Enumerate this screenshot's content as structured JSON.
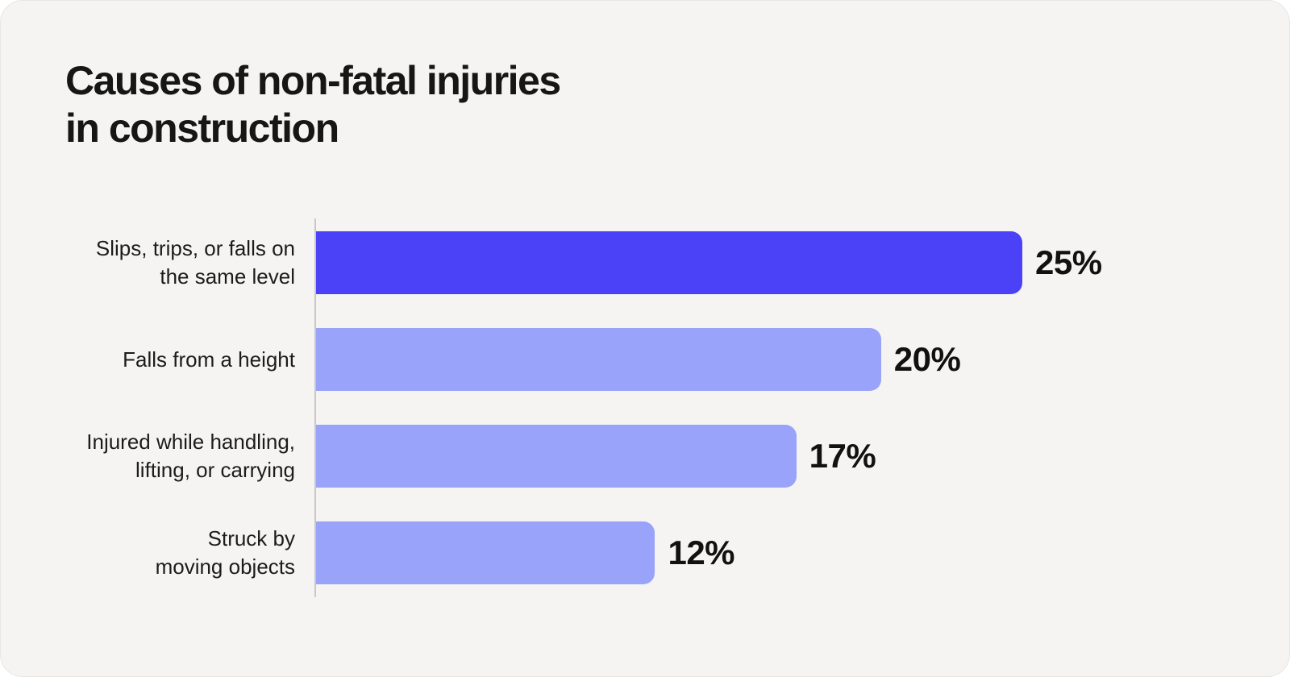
{
  "card": {
    "title": "Causes of non-fatal injuries\nin construction"
  },
  "chart_data": {
    "type": "bar",
    "orientation": "horizontal",
    "title": "Causes of non-fatal injuries in construction",
    "categories": [
      "Slips, trips, or falls on the same level",
      "Falls from a height",
      "Injured while handling, lifting, or carrying",
      "Struck by moving objects"
    ],
    "values": [
      25,
      20,
      17,
      12
    ],
    "unit": "%",
    "xlim": [
      0,
      25
    ],
    "grid": false,
    "legend": false,
    "bar_colors": {
      "highlight": "#4B42F8",
      "default": "#9AA3FA"
    },
    "rows": [
      {
        "label": "Slips, trips, or falls on\nthe same level",
        "value": 25,
        "value_label": "25%",
        "highlight": true
      },
      {
        "label": "Falls from a height",
        "value": 20,
        "value_label": "20%",
        "highlight": false
      },
      {
        "label": "Injured while handling,\nlifting, or carrying",
        "value": 17,
        "value_label": "17%",
        "highlight": false
      },
      {
        "label": "Struck by\nmoving objects",
        "value": 12,
        "value_label": "12%",
        "highlight": false
      }
    ]
  },
  "colors": {
    "page_bg": "#FFFFFF",
    "card_bg": "#F5F4F2",
    "title_text": "#161616",
    "label_text": "#1C1C1C",
    "value_text": "#111111",
    "axis_line": "#C9C8C6"
  }
}
